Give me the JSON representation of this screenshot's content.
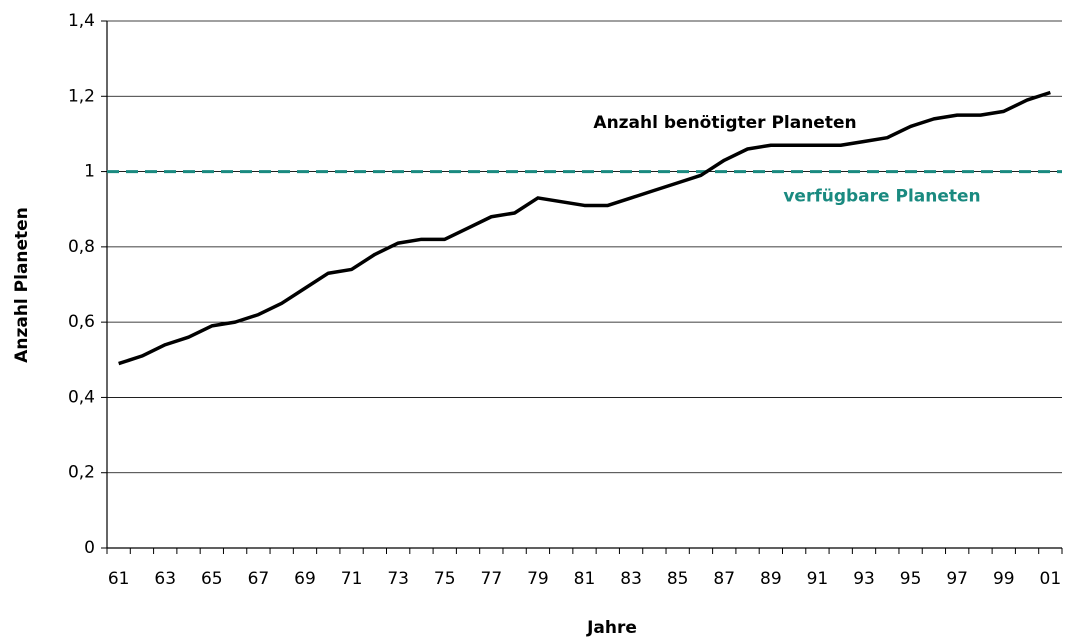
{
  "chart_data": {
    "type": "line",
    "x_label": "Jahre",
    "y_label": "Anzahl Planeten",
    "categories": [
      "61",
      null,
      "63",
      null,
      "65",
      null,
      "67",
      null,
      "69",
      null,
      "71",
      null,
      "73",
      null,
      "75",
      null,
      "77",
      null,
      "79",
      null,
      "81",
      null,
      "83",
      null,
      "85",
      null,
      "87",
      null,
      "89",
      null,
      "91",
      null,
      "93",
      null,
      "95",
      null,
      "97",
      null,
      "99",
      null,
      "01"
    ],
    "series": [
      {
        "name": "Anzahl benötigter Planeten",
        "color": "#000000",
        "values": [
          0.49,
          0.51,
          0.54,
          0.56,
          0.59,
          0.6,
          0.62,
          0.65,
          0.69,
          0.73,
          0.74,
          0.78,
          0.81,
          0.82,
          0.82,
          0.85,
          0.88,
          0.89,
          0.93,
          0.92,
          0.91,
          0.91,
          0.93,
          0.95,
          0.97,
          0.99,
          1.03,
          1.06,
          1.07,
          1.07,
          1.07,
          1.07,
          1.08,
          1.09,
          1.12,
          1.14,
          1.15,
          1.15,
          1.16,
          1.19,
          1.21
        ]
      }
    ],
    "reference_line": {
      "value": 1,
      "label": "verfügbare Planeten",
      "color": "#1a8a80"
    },
    "ylim": [
      0,
      1.4
    ],
    "yticks": [
      0,
      {
        "value": 0.2,
        "label": "0,2"
      },
      {
        "value": 0.4,
        "label": "0,4"
      },
      {
        "value": 0.6,
        "label": "0,6"
      },
      {
        "value": 0.8,
        "label": "0,8"
      },
      1,
      {
        "value": 1.2,
        "label": "1,2"
      },
      {
        "value": 1.4,
        "label": "1,4"
      }
    ],
    "grid": true
  }
}
